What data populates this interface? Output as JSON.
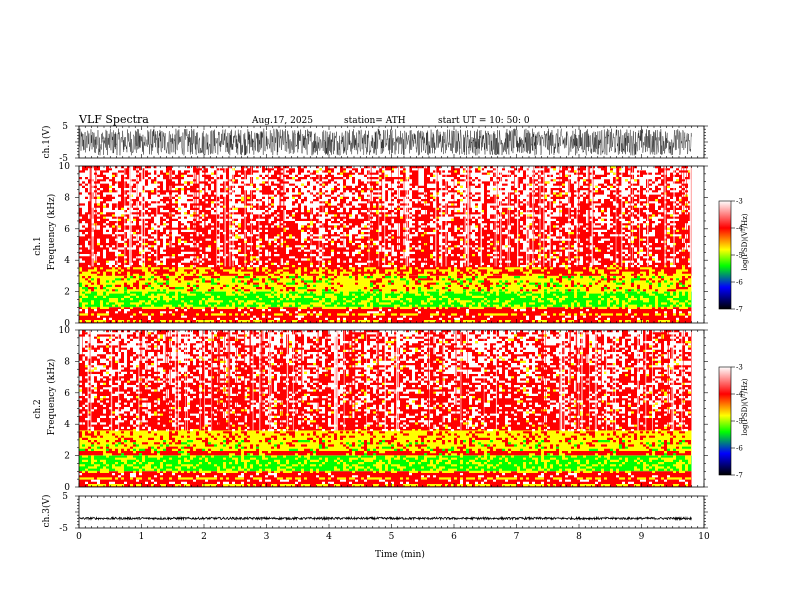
{
  "header": {
    "title": "VLF  Spectra",
    "date": "Aug.17, 2025",
    "station": "station= ATH",
    "start": "start  UT  =     10: 50: 0"
  },
  "colors": {
    "axis": "#000000",
    "trace": "#000000",
    "colormap": [
      "#000000",
      "#0000ff",
      "#00ff00",
      "#ffff00",
      "#ff0000",
      "#ffffff"
    ]
  },
  "chart_data": [
    {
      "type": "line",
      "id": "ch1",
      "ylabel": "ch.1(V)",
      "yticks": [
        "5",
        "-5"
      ],
      "ylim": [
        -5,
        5
      ],
      "x_range_min": [
        0,
        9.8
      ],
      "signal": "dense noise, amplitude about ±4 V"
    },
    {
      "type": "heatmap",
      "id": "spec1",
      "ylabel_top": "ch.1",
      "ylabel": "Frequency  (kHz)",
      "yticks": [
        "0",
        "2",
        "4",
        "6",
        "8",
        "10"
      ],
      "ylim": [
        0,
        10
      ],
      "x_range_min": [
        0,
        9.8
      ],
      "colorbar": {
        "label": "log(PSD)(V²/Hz)",
        "ticks": [
          "-3",
          "-4",
          "-5",
          "-6",
          "-7"
        ],
        "range": [
          -7,
          -3
        ]
      },
      "bands": [
        {
          "f_khz": [
            3.6,
            10
          ],
          "level": "red/white, about -3.5"
        },
        {
          "f_khz": [
            3.0,
            3.6
          ],
          "level": "red/yellow, about -4"
        },
        {
          "f_khz": [
            2.0,
            3.0
          ],
          "level": "yellow, about -4.3"
        },
        {
          "f_khz": [
            1.0,
            2.0
          ],
          "level": "green/yellow, about -4.8"
        },
        {
          "f_khz": [
            0,
            1.0
          ],
          "level": "red/yellow striped, about -4"
        }
      ]
    },
    {
      "type": "heatmap",
      "id": "spec2",
      "ylabel_top": "ch.2",
      "ylabel": "Frequency  (kHz)",
      "yticks": [
        "0",
        "2",
        "4",
        "6",
        "8",
        "10"
      ],
      "ylim": [
        0,
        10
      ],
      "x_range_min": [
        0,
        9.8
      ],
      "colorbar": {
        "label": "log(PSD)(V²/Hz)",
        "ticks": [
          "-3",
          "-4",
          "-5",
          "-6",
          "-7"
        ],
        "range": [
          -7,
          -3
        ]
      },
      "bands": [
        {
          "f_khz": [
            3.6,
            10
          ],
          "level": "red/white, about -3.5"
        },
        {
          "f_khz": [
            2.0,
            3.6
          ],
          "level": "yellow, about -4.3"
        },
        {
          "f_khz": [
            1.0,
            2.0
          ],
          "level": "green/yellow, about -4.8"
        },
        {
          "f_khz": [
            0,
            1.0
          ],
          "level": "red/yellow striped, about -4"
        }
      ]
    },
    {
      "type": "line",
      "id": "ch3",
      "ylabel": "ch.3(V)",
      "yticks": [
        "5",
        "-5"
      ],
      "ylim": [
        -5,
        5
      ],
      "x_range_min": [
        0,
        9.8
      ],
      "signal": "flat, about -2 V"
    }
  ],
  "xaxis": {
    "label": "Time  (min)",
    "ticks": [
      "0",
      "1",
      "2",
      "3",
      "4",
      "5",
      "6",
      "7",
      "8",
      "9",
      "10"
    ],
    "range": [
      0,
      10
    ]
  }
}
